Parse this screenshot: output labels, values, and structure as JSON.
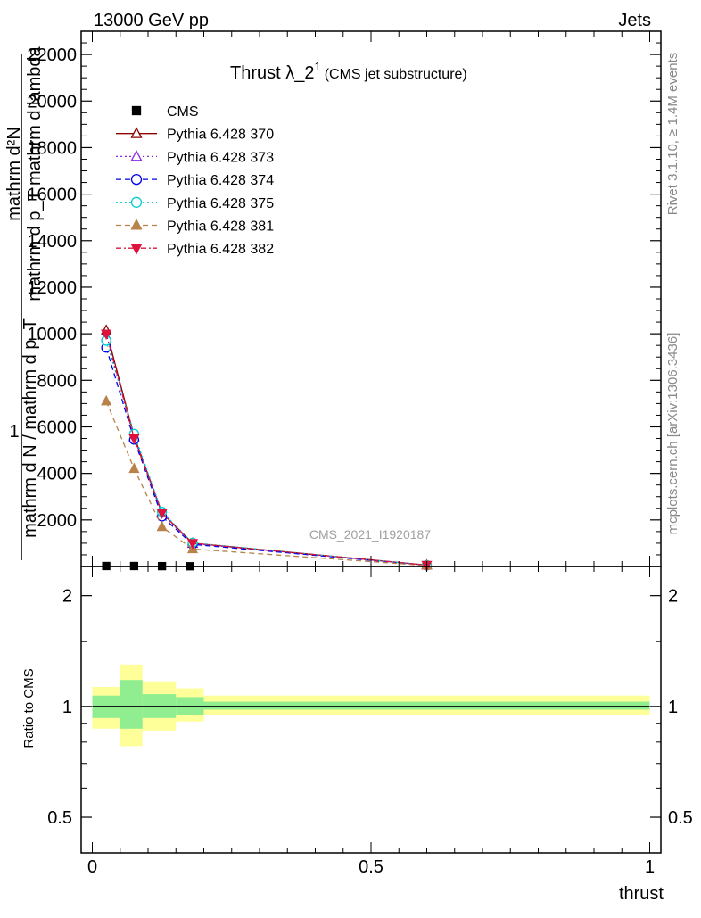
{
  "header": {
    "left": "13000 GeV pp",
    "right": "Jets"
  },
  "side_labels": {
    "rivet": "Rivet 3.1.10, ≥ 1.4M events",
    "mcplots": "mcplots.cern.ch [arXiv:1306.3436]"
  },
  "watermark": "CMS_2021_I1920187",
  "title": {
    "main": "Thrust λ_2",
    "superscript": "1",
    "note": "(CMS jet substructure)"
  },
  "yaxis": {
    "top_line1": "mathrm d²N",
    "top_line2": "mathrm d p_T mathrm d lambda",
    "one": "1",
    "bottom_line": "mathrm d N / mathrm d p_T"
  },
  "ratio_ylabel": "Ratio to CMS",
  "xlabel": "thrust",
  "legend": [
    {
      "label": "CMS",
      "color": "#000000",
      "marker": "square-filled",
      "line": "none"
    },
    {
      "label": "Pythia 6.428 370",
      "color": "#8b0000",
      "marker": "triangle-up-open",
      "line": "solid"
    },
    {
      "label": "Pythia 6.428 373",
      "color": "#8a2be2",
      "marker": "triangle-up-open",
      "line": "dotted"
    },
    {
      "label": "Pythia 6.428 374",
      "color": "#0000ee",
      "marker": "circle-open",
      "line": "dashed"
    },
    {
      "label": "Pythia 6.428 375",
      "color": "#00ced1",
      "marker": "circle-open",
      "line": "dotted"
    },
    {
      "label": "Pythia 6.428 381",
      "color": "#b8824a",
      "marker": "triangle-up-filled",
      "line": "dashed"
    },
    {
      "label": "Pythia 6.428 382",
      "color": "#dc143c",
      "marker": "triangle-down-filled",
      "line": "dashdot"
    }
  ],
  "chart_data": {
    "type": "line",
    "main": {
      "xlim": [
        -0.02,
        1.02
      ],
      "ylim": [
        0,
        23000
      ],
      "yticks": [
        2000,
        4000,
        6000,
        8000,
        10000,
        12000,
        14000,
        16000,
        18000,
        20000,
        22000
      ],
      "ytick_labels": [
        "2000",
        "4000",
        "6000",
        "8000",
        "10000",
        "12000",
        "14000",
        "16000",
        "18000",
        "20000",
        "22000"
      ]
    },
    "data_points": {
      "x": [
        0.025,
        0.075,
        0.125,
        0.175
      ],
      "y": [
        20,
        20,
        15,
        10
      ]
    },
    "x": [
      0.025,
      0.075,
      0.125,
      0.18,
      0.6
    ],
    "series": [
      {
        "name": "Pythia 6.428 370",
        "values": [
          10150,
          5600,
          2300,
          1000,
          60
        ]
      },
      {
        "name": "Pythia 6.428 373",
        "values": [
          9900,
          5550,
          2250,
          980,
          55
        ]
      },
      {
        "name": "Pythia 6.428 374",
        "values": [
          9400,
          5450,
          2150,
          950,
          50
        ]
      },
      {
        "name": "Pythia 6.428 375",
        "values": [
          9700,
          5700,
          2350,
          1020,
          55
        ]
      },
      {
        "name": "Pythia 6.428 381",
        "values": [
          7100,
          4200,
          1700,
          750,
          40
        ]
      },
      {
        "name": "Pythia 6.428 382",
        "values": [
          10000,
          5500,
          2300,
          1000,
          60
        ]
      }
    ],
    "ratio": {
      "ylim": [
        0.4,
        2.4
      ],
      "log": true,
      "yticks": [
        0.5,
        1,
        2
      ],
      "ytick_labels": [
        "0.5",
        "1",
        "2"
      ],
      "bins": [
        {
          "x0": 0.0,
          "x1": 0.05,
          "inner": [
            0.93,
            1.07
          ],
          "outer": [
            0.87,
            1.13
          ]
        },
        {
          "x0": 0.05,
          "x1": 0.09,
          "inner": [
            0.87,
            1.18
          ],
          "outer": [
            0.78,
            1.3
          ]
        },
        {
          "x0": 0.09,
          "x1": 0.15,
          "inner": [
            0.93,
            1.08
          ],
          "outer": [
            0.86,
            1.17
          ]
        },
        {
          "x0": 0.15,
          "x1": 0.2,
          "inner": [
            0.95,
            1.06
          ],
          "outer": [
            0.91,
            1.12
          ]
        },
        {
          "x0": 0.2,
          "x1": 1.0,
          "inner": [
            0.98,
            1.03
          ],
          "outer": [
            0.95,
            1.07
          ]
        }
      ]
    },
    "xticks": [
      0,
      0.5,
      1
    ],
    "xtick_labels": [
      "0",
      "0.5",
      "1"
    ],
    "grid": false,
    "legend_position": "top-left"
  }
}
